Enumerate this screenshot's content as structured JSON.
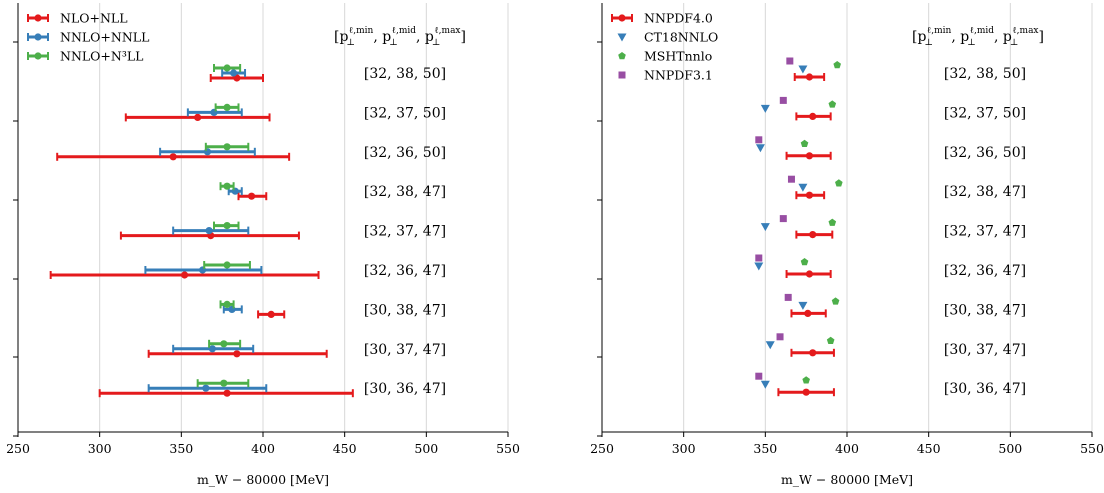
{
  "chart_data": [
    {
      "type": "scatter",
      "panel": "left",
      "xlabel": "m_W − 80000 [MeV]",
      "xlim": [
        250,
        550
      ],
      "xticks": [
        250,
        300,
        350,
        400,
        450,
        500,
        550
      ],
      "header": "[p⊥^{ℓ,min}, p⊥^{ℓ,mid}, p⊥^{ℓ,max}]",
      "header_parts": [
        "[p",
        "⊥",
        "ℓ,min",
        ", p",
        "⊥",
        "ℓ,mid",
        ", p",
        "⊥",
        "ℓ,max",
        "]"
      ],
      "grid": true,
      "legend_position": "top-left",
      "rows": [
        "[32, 38, 50]",
        "[32, 37, 50]",
        "[32, 36, 50]",
        "[32, 38, 47]",
        "[32, 37, 47]",
        "[32, 36, 47]",
        "[30, 38, 47]",
        "[30, 37, 47]",
        "[30, 36, 47]"
      ],
      "series": [
        {
          "name": "NLO+NLL",
          "color": "#e41a1c",
          "marker": "circle",
          "values": [
            384,
            360,
            345,
            393,
            368,
            352,
            405,
            384,
            378
          ],
          "err_low": [
            368,
            316,
            274,
            385,
            313,
            270,
            397,
            330,
            300
          ],
          "err_high": [
            400,
            404,
            416,
            402,
            422,
            434,
            413,
            439,
            455
          ]
        },
        {
          "name": "NNLO+NNLL",
          "color": "#377eb8",
          "marker": "circle",
          "values": [
            382,
            370,
            366,
            383,
            367,
            363,
            381,
            369,
            365
          ],
          "err_low": [
            375,
            354,
            337,
            379,
            345,
            328,
            376,
            345,
            330
          ],
          "err_high": [
            389,
            387,
            395,
            387,
            391,
            399,
            387,
            394,
            402
          ]
        },
        {
          "name": "NNLO+N³LL",
          "color": "#4daf4a",
          "marker": "circle",
          "values": [
            378,
            378,
            378,
            378,
            378,
            378,
            378,
            376,
            376
          ],
          "err_low": [
            370,
            371,
            365,
            374,
            370,
            364,
            374,
            367,
            360
          ],
          "err_high": [
            386,
            385,
            391,
            382,
            385,
            392,
            382,
            386,
            391
          ]
        }
      ]
    },
    {
      "type": "scatter",
      "panel": "right",
      "xlabel": "m_W − 80000 [MeV]",
      "xlim": [
        250,
        550
      ],
      "xticks": [
        250,
        300,
        350,
        400,
        450,
        500,
        550
      ],
      "header": "[p⊥^{ℓ,min}, p⊥^{ℓ,mid}, p⊥^{ℓ,max}]",
      "header_parts": [
        "[p",
        "⊥",
        "ℓ,min",
        ", p",
        "⊥",
        "ℓ,mid",
        ", p",
        "⊥",
        "ℓ,max",
        "]"
      ],
      "grid": true,
      "legend_position": "top-left",
      "rows": [
        "[32, 38, 50]",
        "[32, 37, 50]",
        "[32, 36, 50]",
        "[32, 38, 47]",
        "[32, 37, 47]",
        "[32, 36, 47]",
        "[30, 38, 47]",
        "[30, 37, 47]",
        "[30, 36, 47]"
      ],
      "series": [
        {
          "name": "NNPDF4.0",
          "color": "#e41a1c",
          "marker": "circle",
          "values": [
            377,
            379,
            377,
            377,
            379,
            377,
            376,
            379,
            375
          ],
          "err_low": [
            368,
            369,
            363,
            369,
            369,
            363,
            366,
            366,
            358
          ],
          "err_high": [
            386,
            390,
            390,
            386,
            391,
            390,
            387,
            392,
            392
          ]
        },
        {
          "name": "CT18NNLO",
          "color": "#377eb8",
          "marker": "triangle-down",
          "values": [
            373,
            350,
            347,
            373,
            350,
            346,
            373,
            353,
            350
          ]
        },
        {
          "name": "MSHTnnlo",
          "color": "#4daf4a",
          "marker": "pentagon",
          "values": [
            394,
            391,
            374,
            395,
            391,
            374,
            393,
            390,
            375
          ]
        },
        {
          "name": "NNPDF3.1",
          "color": "#984ea3",
          "marker": "square",
          "values": [
            365,
            361,
            346,
            366,
            361,
            346,
            364,
            359,
            346
          ]
        }
      ]
    }
  ]
}
